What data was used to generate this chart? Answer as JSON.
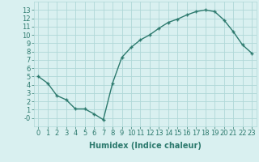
{
  "x": [
    0,
    1,
    2,
    3,
    4,
    5,
    6,
    7,
    8,
    9,
    10,
    11,
    12,
    13,
    14,
    15,
    16,
    17,
    18,
    19,
    20,
    21,
    22,
    23
  ],
  "y": [
    5.0,
    4.2,
    2.7,
    2.2,
    1.1,
    1.1,
    0.5,
    -0.2,
    4.2,
    7.3,
    8.5,
    9.4,
    10.0,
    10.8,
    11.5,
    11.9,
    12.4,
    12.8,
    13.0,
    12.8,
    11.8,
    10.4,
    8.8,
    7.8
  ],
  "line_color": "#2d7a6e",
  "marker": "+",
  "marker_size": 3,
  "bg_color": "#d9f0f0",
  "grid_color": "#b0d8d8",
  "axis_color": "#2d7a6e",
  "xlabel": "Humidex (Indice chaleur)",
  "ylabel": "",
  "title": "",
  "xlim": [
    -0.5,
    23.5
  ],
  "ylim": [
    -1,
    14
  ],
  "yticks": [
    0,
    1,
    2,
    3,
    4,
    5,
    6,
    7,
    8,
    9,
    10,
    11,
    12,
    13
  ],
  "xticks": [
    0,
    1,
    2,
    3,
    4,
    5,
    6,
    7,
    8,
    9,
    10,
    11,
    12,
    13,
    14,
    15,
    16,
    17,
    18,
    19,
    20,
    21,
    22,
    23
  ],
  "xlabel_fontsize": 7,
  "tick_fontsize": 6,
  "line_width": 1.0,
  "ytick_labels": [
    "-0",
    "1",
    "2",
    "3",
    "4",
    "5",
    "6",
    "7",
    "8",
    "9",
    "10",
    "11",
    "12",
    "13"
  ]
}
